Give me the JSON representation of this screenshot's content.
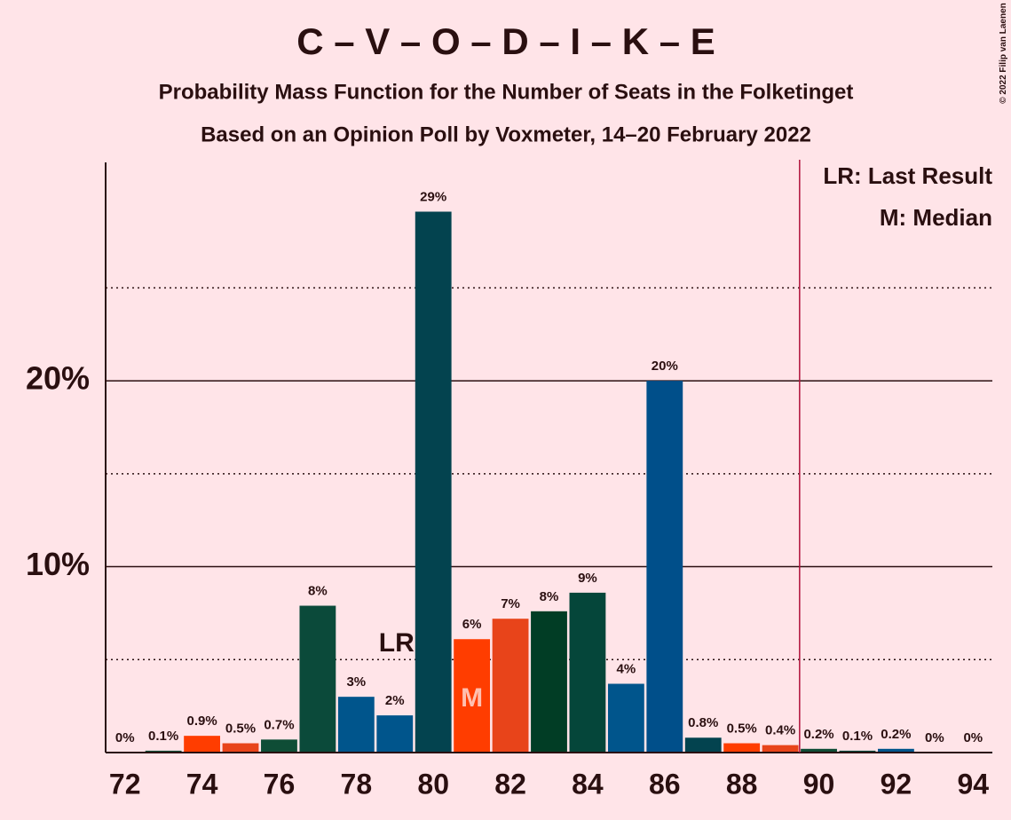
{
  "chart_data": {
    "type": "bar",
    "title": "C – V – O – D – I – K – E",
    "subtitle": "Probability Mass Function for the Number of Seats in the Folketinget",
    "subtitle2": "Based on an Opinion Poll by Voxmeter, 14–20 February 2022",
    "copyright": "© 2022 Filip van Laenen",
    "x": [
      72,
      73,
      74,
      75,
      76,
      77,
      78,
      79,
      80,
      81,
      82,
      83,
      84,
      85,
      86,
      87,
      88,
      89,
      90,
      91,
      92,
      93,
      94
    ],
    "values": [
      0,
      0.1,
      0.9,
      0.5,
      0.7,
      7.9,
      3.0,
      2.0,
      29.1,
      6.1,
      7.2,
      7.6,
      8.6,
      3.7,
      20.0,
      0.8,
      0.5,
      0.4,
      0.2,
      0.1,
      0.2,
      0,
      0
    ],
    "value_labels": [
      "0%",
      "0.1%",
      "0.9%",
      "0.5%",
      "0.7%",
      "8%",
      "3%",
      "2%",
      "29%",
      "6%",
      "7%",
      "8%",
      "9%",
      "4%",
      "20%",
      "0.8%",
      "0.5%",
      "0.4%",
      "0.2%",
      "0.1%",
      "0.2%",
      "0%",
      "0%"
    ],
    "colors": [
      "#03434f",
      "#0f4d36",
      "#ff3d00",
      "#e8441a",
      "#0f4d36",
      "#0b4a3a",
      "#00558c",
      "#00558c",
      "#03434f",
      "#ff3d00",
      "#e8441a",
      "#013d25",
      "#05463a",
      "#00558c",
      "#004f8a",
      "#03434f",
      "#ff3d00",
      "#e8441a",
      "#0f4d36",
      "#05463a",
      "#00558c",
      "#03434f",
      "#03434f"
    ],
    "xlim": [
      71.5,
      94.5
    ],
    "xticks": [
      72,
      74,
      76,
      78,
      80,
      82,
      84,
      86,
      88,
      90,
      92,
      94
    ],
    "ylim": [
      0,
      31.75
    ],
    "yticks": [
      {
        "value": 10,
        "label": "10%"
      },
      {
        "value": 20,
        "label": "20%"
      }
    ],
    "minor_gridlines": [
      5,
      15,
      25
    ],
    "majority_line": {
      "x": 89.5,
      "color": "#b0103a"
    },
    "annotations": [
      {
        "text": "LR",
        "x": 79
      },
      {
        "text": "M",
        "x": 81
      }
    ],
    "legend": [
      "LR: Last Result",
      "M: Median"
    ]
  }
}
